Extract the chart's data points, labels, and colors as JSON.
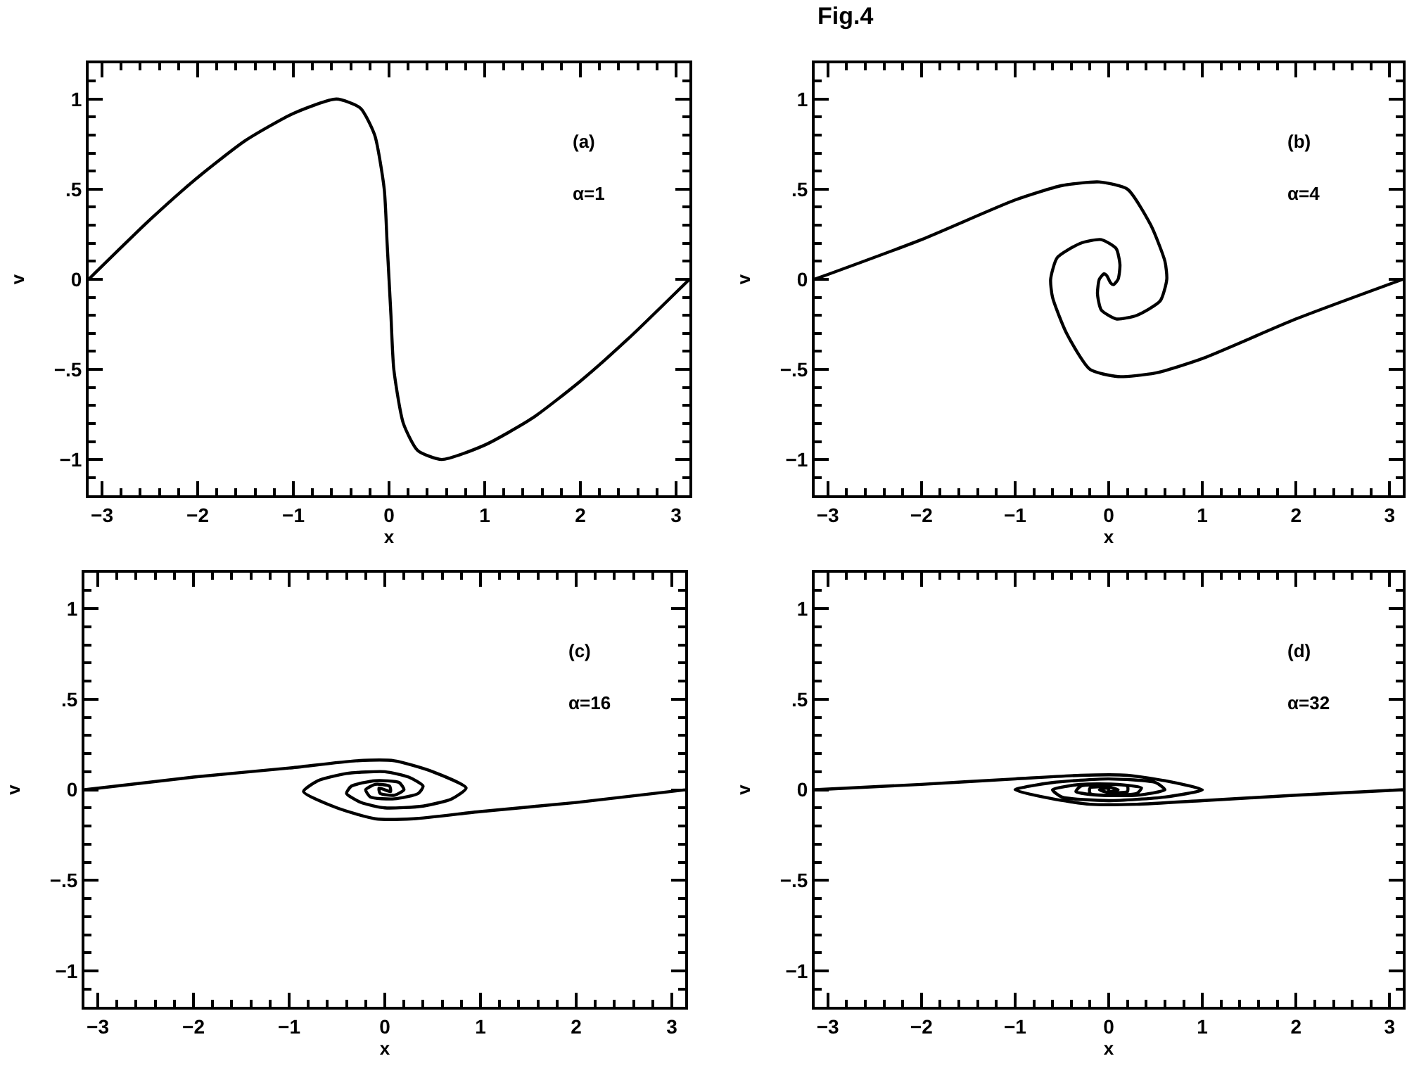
{
  "chart_data": [
    {
      "type": "line",
      "xlabel": "x",
      "ylabel": "v",
      "annotations": [
        "(a)",
        "α=1"
      ],
      "xlim": [
        -3.14,
        3.14
      ],
      "ylim": [
        -1.2,
        1.2
      ],
      "xticks": [
        -3,
        -2,
        -1,
        0,
        1,
        2,
        3
      ],
      "yticks": [
        {
          "value": -1,
          "label": "−1"
        },
        {
          "value": -0.5,
          "label": "−.5"
        },
        0,
        {
          "value": 0.5,
          "label": ".5"
        },
        1
      ],
      "series": [
        {
          "color": "#000000",
          "x": [
            -3.14,
            -2.5,
            -2,
            -1.5,
            -1,
            -0.55,
            -0.3,
            -0.15,
            -0.05,
            -0.02,
            0,
            0.02,
            0.05,
            0.15,
            0.3,
            0.55,
            1,
            1.5,
            2,
            2.5,
            3.14
          ],
          "values": [
            0,
            0.33,
            0.565,
            0.77,
            0.92,
            1.0,
            0.95,
            0.8,
            0.5,
            0.2,
            0,
            -0.2,
            -0.5,
            -0.8,
            -0.95,
            -1.0,
            -0.92,
            -0.77,
            -0.565,
            -0.33,
            0
          ]
        }
      ]
    },
    {
      "type": "line",
      "title": "Fig.4",
      "xlabel": "x",
      "ylabel": "v",
      "annotations": [
        "(b)",
        "α=4"
      ],
      "xlim": [
        -3.14,
        3.14
      ],
      "ylim": [
        -1.2,
        1.2
      ],
      "xticks": [
        -3,
        -2,
        -1,
        0,
        1,
        2,
        3
      ],
      "yticks": [
        {
          "value": -1,
          "label": "−1"
        },
        {
          "value": -0.5,
          "label": "−.5"
        },
        0,
        {
          "value": 0.5,
          "label": ".5"
        },
        1
      ],
      "series": [
        {
          "color": "#000000",
          "x": [
            -3.14,
            -2,
            -1,
            -0.5,
            -0.1,
            0.2,
            0.45,
            0.6,
            0.62,
            0.55,
            0.3,
            0.08,
            -0.08,
            -0.12,
            -0.1,
            -0.05,
            -0.02,
            0,
            0.02,
            0.05,
            0.1,
            0.12,
            0.08,
            -0.08,
            -0.3,
            -0.55,
            -0.62,
            -0.6,
            -0.45,
            -0.2,
            0.1,
            0.5,
            1,
            2,
            3.14
          ],
          "values": [
            0,
            0.22,
            0.44,
            0.52,
            0.54,
            0.5,
            0.3,
            0.1,
            0,
            -0.12,
            -0.2,
            -0.22,
            -0.17,
            -0.08,
            0,
            0.03,
            0.02,
            0,
            -0.02,
            -0.03,
            0,
            0.08,
            0.17,
            0.22,
            0.2,
            0.12,
            0,
            -0.1,
            -0.3,
            -0.5,
            -0.54,
            -0.52,
            -0.44,
            -0.22,
            0
          ]
        }
      ]
    },
    {
      "type": "line",
      "xlabel": "x",
      "ylabel": "v",
      "annotations": [
        "(c)",
        "α=16"
      ],
      "xlim": [
        -3.14,
        3.14
      ],
      "ylim": [
        -1.2,
        1.2
      ],
      "xticks": [
        -3,
        -2,
        -1,
        0,
        1,
        2,
        3
      ],
      "yticks": [
        {
          "value": -1,
          "label": "−1"
        },
        {
          "value": -0.5,
          "label": "−.5"
        },
        0,
        {
          "value": 0.5,
          "label": ".5"
        },
        1
      ],
      "series": [
        {
          "color": "#000000",
          "x": [
            -3.14,
            -2,
            -1,
            -0.3,
            0.1,
            0.5,
            0.85,
            0.7,
            0.4,
            0,
            -0.25,
            -0.4,
            -0.35,
            -0.1,
            0.15,
            0.2,
            0.1,
            -0.05,
            -0.06,
            0,
            0.06,
            0.05,
            -0.1,
            -0.2,
            -0.15,
            0.1,
            0.35,
            0.4,
            0.25,
            0,
            -0.4,
            -0.7,
            -0.85,
            -0.5,
            -0.1,
            0.3,
            1,
            2,
            3.14
          ],
          "values": [
            0,
            0.07,
            0.12,
            0.16,
            0.16,
            0.1,
            0.01,
            -0.05,
            -0.09,
            -0.1,
            -0.07,
            -0.02,
            0.02,
            0.05,
            0.04,
            0,
            -0.03,
            -0.02,
            0.01,
            0,
            -0.01,
            0.02,
            0.03,
            0,
            -0.04,
            -0.05,
            -0.02,
            0.02,
            0.07,
            0.1,
            0.09,
            0.05,
            -0.01,
            -0.1,
            -0.16,
            -0.16,
            -0.12,
            -0.07,
            0
          ]
        }
      ]
    },
    {
      "type": "line",
      "xlabel": "x",
      "ylabel": "v",
      "annotations": [
        "(d)",
        "α=32"
      ],
      "xlim": [
        -3.14,
        3.14
      ],
      "ylim": [
        -1.2,
        1.2
      ],
      "xticks": [
        -3,
        -2,
        -1,
        0,
        1,
        2,
        3
      ],
      "yticks": [
        {
          "value": -1,
          "label": "−1"
        },
        {
          "value": -0.5,
          "label": "−.5"
        },
        0,
        {
          "value": 0.5,
          "label": ".5"
        },
        1
      ],
      "series": [
        {
          "color": "#000000",
          "x": [
            -3.14,
            -2,
            -1,
            -0.3,
            0.2,
            0.6,
            1.0,
            0.6,
            0,
            -0.5,
            -0.6,
            -0.3,
            0.1,
            0.35,
            0.3,
            0,
            -0.2,
            -0.2,
            0,
            0.1,
            0,
            0,
            0,
            -0.1,
            0,
            0.2,
            0.2,
            0,
            -0.3,
            -0.35,
            -0.1,
            0.3,
            0.6,
            0.5,
            0,
            -0.6,
            -1.0,
            -0.6,
            -0.2,
            0.3,
            1,
            2,
            3.14
          ],
          "values": [
            0,
            0.03,
            0.06,
            0.08,
            0.08,
            0.05,
            0,
            -0.04,
            -0.06,
            -0.04,
            0,
            0.03,
            0.03,
            0.01,
            -0.02,
            -0.03,
            -0.02,
            0.01,
            0.015,
            0,
            -0.01,
            0,
            0.01,
            0,
            -0.015,
            -0.01,
            0.02,
            0.03,
            0.02,
            -0.01,
            -0.03,
            -0.03,
            0,
            0.04,
            0.06,
            0.04,
            0,
            -0.05,
            -0.08,
            -0.08,
            -0.06,
            -0.03,
            0
          ]
        }
      ]
    }
  ]
}
